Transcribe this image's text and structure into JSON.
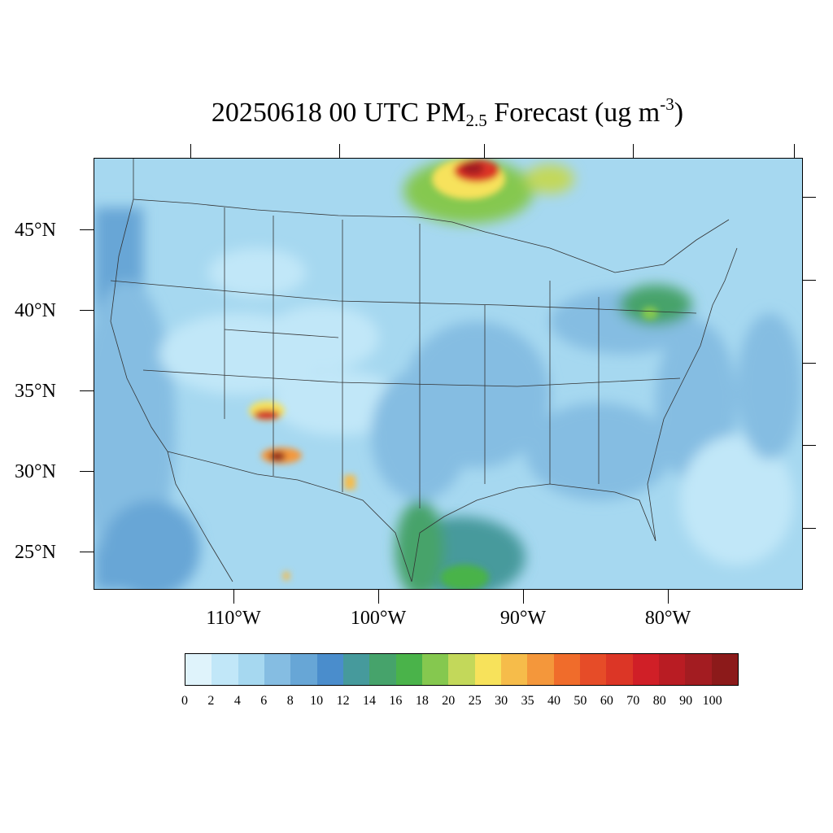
{
  "title": {
    "prefix": "20250618 00 UTC PM",
    "sub": "2.5",
    "mid": " Forecast (ug m",
    "sup": "-3",
    "suffix": ")"
  },
  "map": {
    "variable": "PM2.5",
    "units": "ug m-3",
    "lat_labels": [
      "45°N",
      "40°N",
      "35°N",
      "30°N",
      "25°N"
    ],
    "lon_labels": [
      "110°W",
      "100°W",
      "90°W",
      "80°W"
    ],
    "background_color": "#a6d8f0",
    "hotspots": [
      {
        "name": "canada-north",
        "value": 80
      },
      {
        "name": "canada-ne",
        "value": 25
      },
      {
        "name": "arizona-central",
        "value": 70
      },
      {
        "name": "arizona-south",
        "value": 100
      },
      {
        "name": "texas-west",
        "value": 40
      },
      {
        "name": "gulf-coast-texas",
        "value": 16
      },
      {
        "name": "northeast-corridor",
        "value": 18
      },
      {
        "name": "mexico-south",
        "value": 40
      }
    ]
  },
  "colorbar": {
    "labels": [
      "0",
      "2",
      "4",
      "6",
      "8",
      "10",
      "12",
      "14",
      "16",
      "18",
      "20",
      "25",
      "30",
      "35",
      "40",
      "50",
      "60",
      "70",
      "80",
      "90",
      "100"
    ],
    "colors": [
      "#dff3fb",
      "#c1e7f8",
      "#a6d8f0",
      "#85bde2",
      "#67a6d6",
      "#4a8dcc",
      "#469a9c",
      "#46a36b",
      "#4ab34a",
      "#85c84f",
      "#c3d85a",
      "#f7e25b",
      "#f6bc4a",
      "#f4973b",
      "#f06c2b",
      "#e64c28",
      "#dc3626",
      "#d01f27",
      "#b91c23",
      "#a31c21",
      "#8c1a1a"
    ]
  }
}
